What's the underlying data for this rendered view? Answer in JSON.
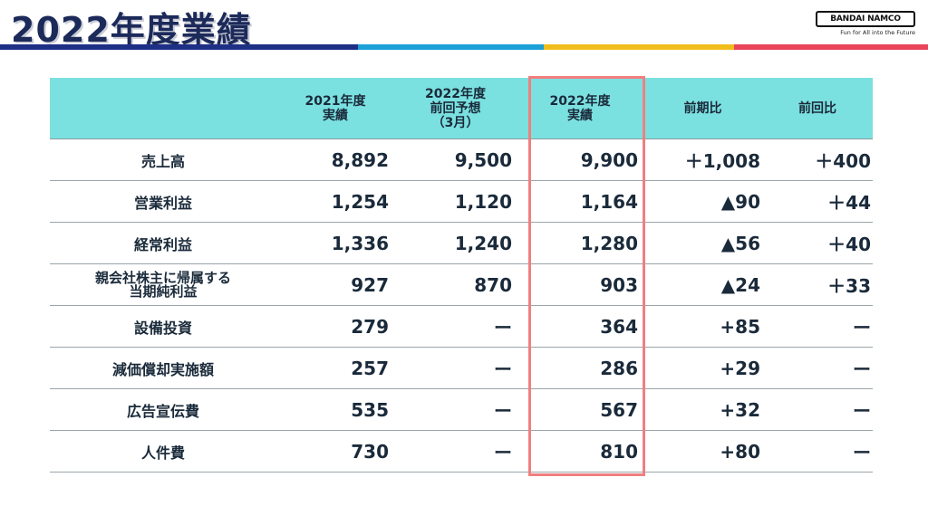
{
  "page": {
    "title": "2022年度業績"
  },
  "logo": {
    "brand": "BANDAI NAMCO",
    "tagline": "Fun for All into the Future"
  },
  "table": {
    "headers": [
      "",
      "2021年度\n実績",
      "2022年度\n前回予想\n（3月）",
      "2022年度\n実績",
      "前期比",
      "前回比"
    ],
    "rows": [
      {
        "label": "売上高",
        "cells": [
          "8,892",
          "9,500",
          "9,900",
          "＋1,008",
          "＋400"
        ]
      },
      {
        "label": "営業利益",
        "cells": [
          "1,254",
          "1,120",
          "1,164",
          "▲90",
          "＋44"
        ]
      },
      {
        "label": "経常利益",
        "cells": [
          "1,336",
          "1,240",
          "1,280",
          "▲56",
          "＋40"
        ]
      },
      {
        "label": "親会社株主に帰属する\n当期純利益",
        "cells": [
          "927",
          "870",
          "903",
          "▲24",
          "＋33"
        ]
      },
      {
        "label": "設備投資",
        "cells": [
          "279",
          "ー",
          "364",
          "+85",
          "ー"
        ]
      },
      {
        "label": "減価償却実施額",
        "cells": [
          "257",
          "ー",
          "286",
          "+29",
          "ー"
        ]
      },
      {
        "label": "広告宣伝費",
        "cells": [
          "535",
          "ー",
          "567",
          "+32",
          "ー"
        ]
      },
      {
        "label": "人件費",
        "cells": [
          "730",
          "ー",
          "810",
          "+80",
          "ー"
        ]
      }
    ]
  },
  "colors": {
    "header_bg": "#7be0e0",
    "highlight_border": "#f07f7f",
    "title_color": "#1c2a5a",
    "stripe": [
      "#1e2f86",
      "#1ba0d8",
      "#f1bd1c",
      "#e8445a"
    ]
  }
}
